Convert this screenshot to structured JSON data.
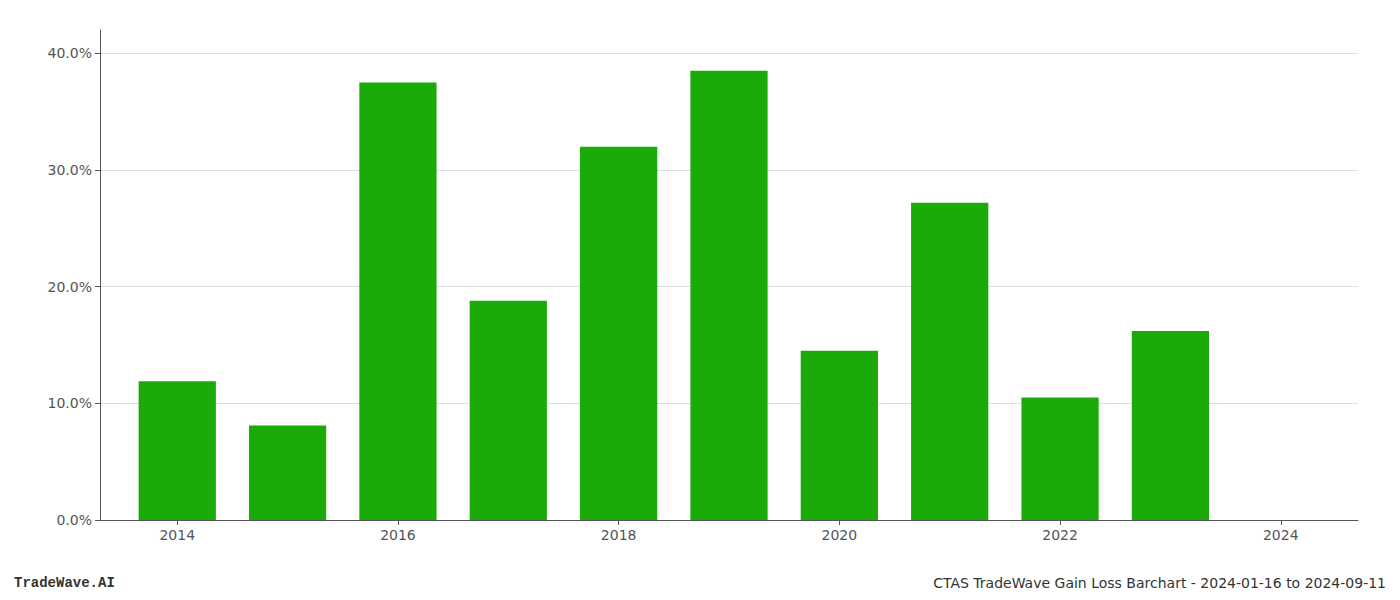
{
  "chart_data": {
    "type": "bar",
    "x": [
      2014,
      2015,
      2016,
      2017,
      2018,
      2019,
      2020,
      2021,
      2022,
      2023
    ],
    "values": [
      0.119,
      0.081,
      0.375,
      0.188,
      0.32,
      0.385,
      0.145,
      0.272,
      0.105,
      0.162
    ],
    "color": "#1aab08",
    "xlim": [
      2013.3,
      2024.7
    ],
    "xticks": [
      2014,
      2016,
      2018,
      2020,
      2022,
      2024
    ],
    "ylim": [
      0,
      0.42
    ],
    "yticks": [
      {
        "value": 0.0,
        "label": "0.0%"
      },
      {
        "value": 0.1,
        "label": "10.0%"
      },
      {
        "value": 0.2,
        "label": "20.0%"
      },
      {
        "value": 0.3,
        "label": "30.0%"
      },
      {
        "value": 0.4,
        "label": "40.0%"
      }
    ],
    "grid": true,
    "annotations": [
      "TradeWave.AI",
      "CTAS TradeWave Gain Loss Barchart - 2024-01-16 to 2024-09-11"
    ]
  }
}
